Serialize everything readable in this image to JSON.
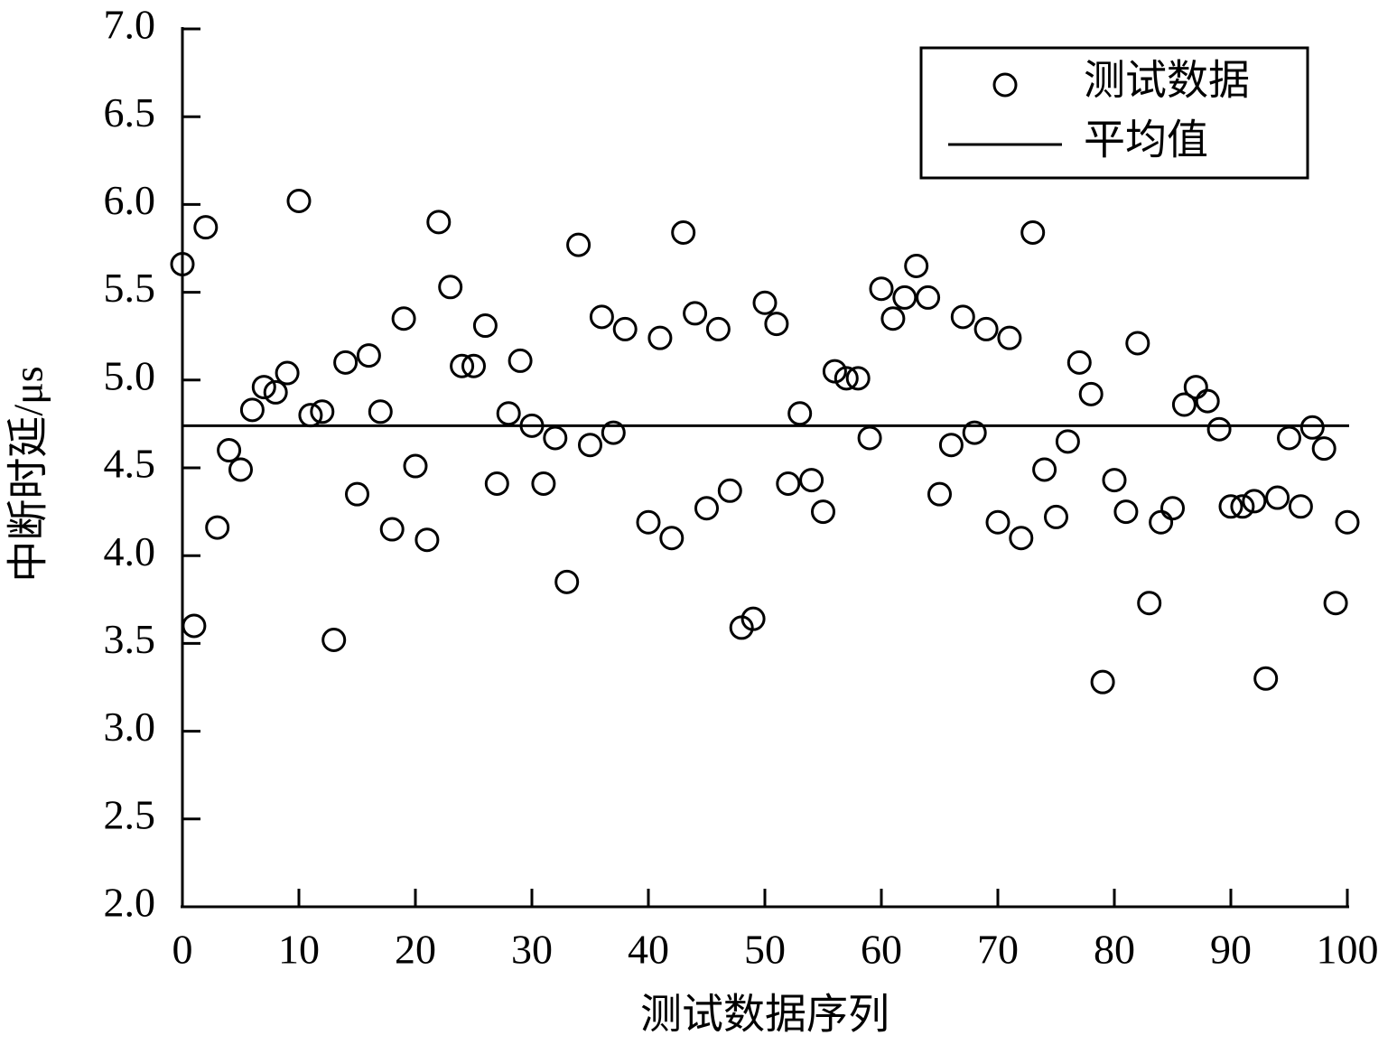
{
  "chart_data": {
    "type": "scatter",
    "xlabel": "测试数据序列",
    "ylabel": "中断时延/μs",
    "xlim": [
      0,
      100
    ],
    "ylim": [
      2,
      7
    ],
    "xticks": [
      0,
      10,
      20,
      30,
      40,
      50,
      60,
      70,
      80,
      90,
      100
    ],
    "yticks": [
      {
        "value": 2,
        "label": "2.0"
      },
      {
        "value": 2.5,
        "label": "2.5"
      },
      {
        "value": 3,
        "label": "3.0"
      },
      {
        "value": 3.5,
        "label": "3.5"
      },
      {
        "value": 4,
        "label": "4.0"
      },
      {
        "value": 4.5,
        "label": "4.5"
      },
      {
        "value": 5,
        "label": "5.0"
      },
      {
        "value": 5.5,
        "label": "5.5"
      },
      {
        "value": 6,
        "label": "6.0"
      },
      {
        "value": 6.5,
        "label": "6.5"
      },
      {
        "value": 7,
        "label": "7.0"
      }
    ],
    "legend": "upper right",
    "series": [
      {
        "name": "测试数据",
        "color": "#000000",
        "x": [
          0,
          1,
          2,
          3,
          4,
          5,
          6,
          7,
          8,
          9,
          10,
          11,
          12,
          13,
          14,
          15,
          16,
          17,
          18,
          19,
          20,
          21,
          22,
          23,
          24,
          25,
          26,
          27,
          28,
          29,
          30,
          31,
          32,
          33,
          34,
          35,
          36,
          37,
          38,
          40,
          41,
          42,
          43,
          44,
          45,
          46,
          47,
          48,
          49,
          50,
          51,
          52,
          53,
          54,
          55,
          56,
          57,
          58,
          59,
          60,
          61,
          62,
          63,
          64,
          65,
          66,
          67,
          68,
          69,
          70,
          71,
          72,
          73,
          74,
          75,
          76,
          77,
          78,
          79,
          80,
          81,
          82,
          83,
          84,
          85,
          86,
          87,
          88,
          89,
          90,
          91,
          92,
          93,
          94,
          95,
          96,
          97,
          98,
          99,
          100
        ],
        "values": [
          5.66,
          3.6,
          5.87,
          4.16,
          4.6,
          4.49,
          4.83,
          4.96,
          4.93,
          5.04,
          6.02,
          4.8,
          4.82,
          3.52,
          5.1,
          4.35,
          5.14,
          4.82,
          4.15,
          5.35,
          4.51,
          4.09,
          5.9,
          5.53,
          5.08,
          5.08,
          5.31,
          4.41,
          4.81,
          5.11,
          4.74,
          4.41,
          4.67,
          3.85,
          5.77,
          4.63,
          5.36,
          4.7,
          5.29,
          4.19,
          5.24,
          4.1,
          5.84,
          5.38,
          4.27,
          5.29,
          4.37,
          3.59,
          3.64,
          5.44,
          5.32,
          4.41,
          4.81,
          4.43,
          4.25,
          5.05,
          5.01,
          5.01,
          4.67,
          5.52,
          5.35,
          5.47,
          5.65,
          5.47,
          4.35,
          4.63,
          5.36,
          4.7,
          5.29,
          4.19,
          5.24,
          4.1,
          5.84,
          4.49,
          4.22,
          4.65,
          5.1,
          4.92,
          3.28,
          4.43,
          4.25,
          5.21,
          3.73,
          4.19,
          4.27,
          4.86,
          4.96,
          4.88,
          4.72,
          4.28,
          4.28,
          4.31,
          3.3,
          4.33,
          4.67,
          4.28,
          4.73,
          4.61,
          3.73,
          4.19
        ]
      },
      {
        "name": "平均值",
        "color": "#000000",
        "value": 4.74
      }
    ]
  }
}
